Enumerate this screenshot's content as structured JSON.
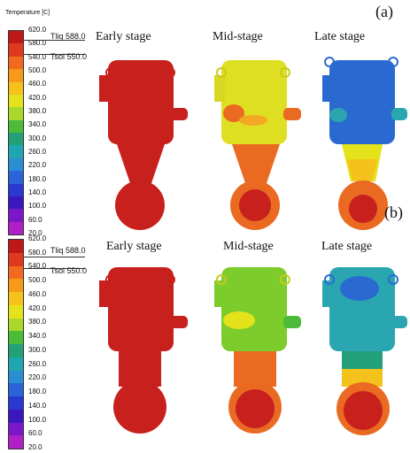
{
  "panels": [
    {
      "label": "(a)",
      "colorbar_title": "Temperature [C]",
      "ticks": [
        "620.0",
        "580.0",
        "540.0",
        "500.0",
        "460.0",
        "420.0",
        "380.0",
        "340.0",
        "300.0",
        "260.0",
        "220.0",
        "180.0",
        "140.0",
        "100.0",
        "60.0",
        "20.0"
      ],
      "tliq": "Tliq  588.0",
      "tsol": "Tsol  550.0",
      "stages": [
        "Early stage",
        "Mid-stage",
        "Late stage"
      ]
    },
    {
      "label": "(b)",
      "colorbar_title": "",
      "ticks": [
        "620.0",
        "580.0",
        "540.0",
        "500.0",
        "460.0",
        "420.0",
        "380.0",
        "340.0",
        "300.0",
        "260.0",
        "220.0",
        "180.0",
        "140.0",
        "100.0",
        "60.0",
        "20.0"
      ],
      "tliq": "Tliq  588.0",
      "tsol": "Tsol  550.0",
      "stages": [
        "Early stage",
        "Mid-stage",
        "Late stage"
      ]
    }
  ],
  "colorbar_colors": [
    "#c01818",
    "#e03a1e",
    "#f26a1e",
    "#f79a1a",
    "#f4c21a",
    "#e4e21a",
    "#a8d82a",
    "#4cbb3a",
    "#22a07a",
    "#1fa6b0",
    "#2a8ed2",
    "#2a64d8",
    "#2838d0",
    "#3a18c0",
    "#7a18c8",
    "#b020c8"
  ],
  "colors": {
    "red": "#c8201c",
    "yellow": "#dede22",
    "orange": "#ea6a22",
    "blue": "#2a6ad0",
    "teal": "#2aa6b0",
    "green": "#7ccc2c"
  }
}
